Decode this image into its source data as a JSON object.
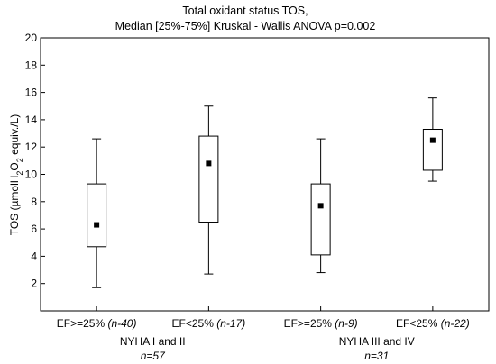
{
  "chart_data": {
    "type": "box",
    "title": "Total oxidant status TOS,",
    "subtitle": "Median [25%-75%] Kruskal - Wallis ANOVA p=0.002",
    "ylabel": {
      "prefix": "TOS (µmolH",
      "sub1": "2",
      "mid": "O",
      "sub2": "2",
      "suffix": " equiv./L)"
    },
    "ylim": [
      0,
      20
    ],
    "yticks": [
      2,
      4,
      6,
      8,
      10,
      12,
      14,
      16,
      18,
      20
    ],
    "categories": [
      {
        "label": "EF>=25%",
        "n": "(n-40)"
      },
      {
        "label": "EF<25%",
        "n": "(n-17)"
      },
      {
        "label": "EF>=25%",
        "n": "(n-9)"
      },
      {
        "label": "EF<25%",
        "n": "(n-22)"
      }
    ],
    "groups": [
      {
        "label": "NYHA I and II",
        "n": "n=57"
      },
      {
        "label": "NYHA III and IV",
        "n": "n=31"
      }
    ],
    "boxes": [
      {
        "min": 1.7,
        "q1": 4.7,
        "median": 6.3,
        "q3": 9.3,
        "max": 12.6
      },
      {
        "min": 2.7,
        "q1": 6.5,
        "median": 10.8,
        "q3": 12.8,
        "max": 15.0
      },
      {
        "min": 2.8,
        "q1": 4.1,
        "median": 7.7,
        "q3": 9.3,
        "max": 12.6
      },
      {
        "min": 9.5,
        "q1": 10.3,
        "median": 12.5,
        "q3": 13.3,
        "max": 15.6
      }
    ]
  }
}
